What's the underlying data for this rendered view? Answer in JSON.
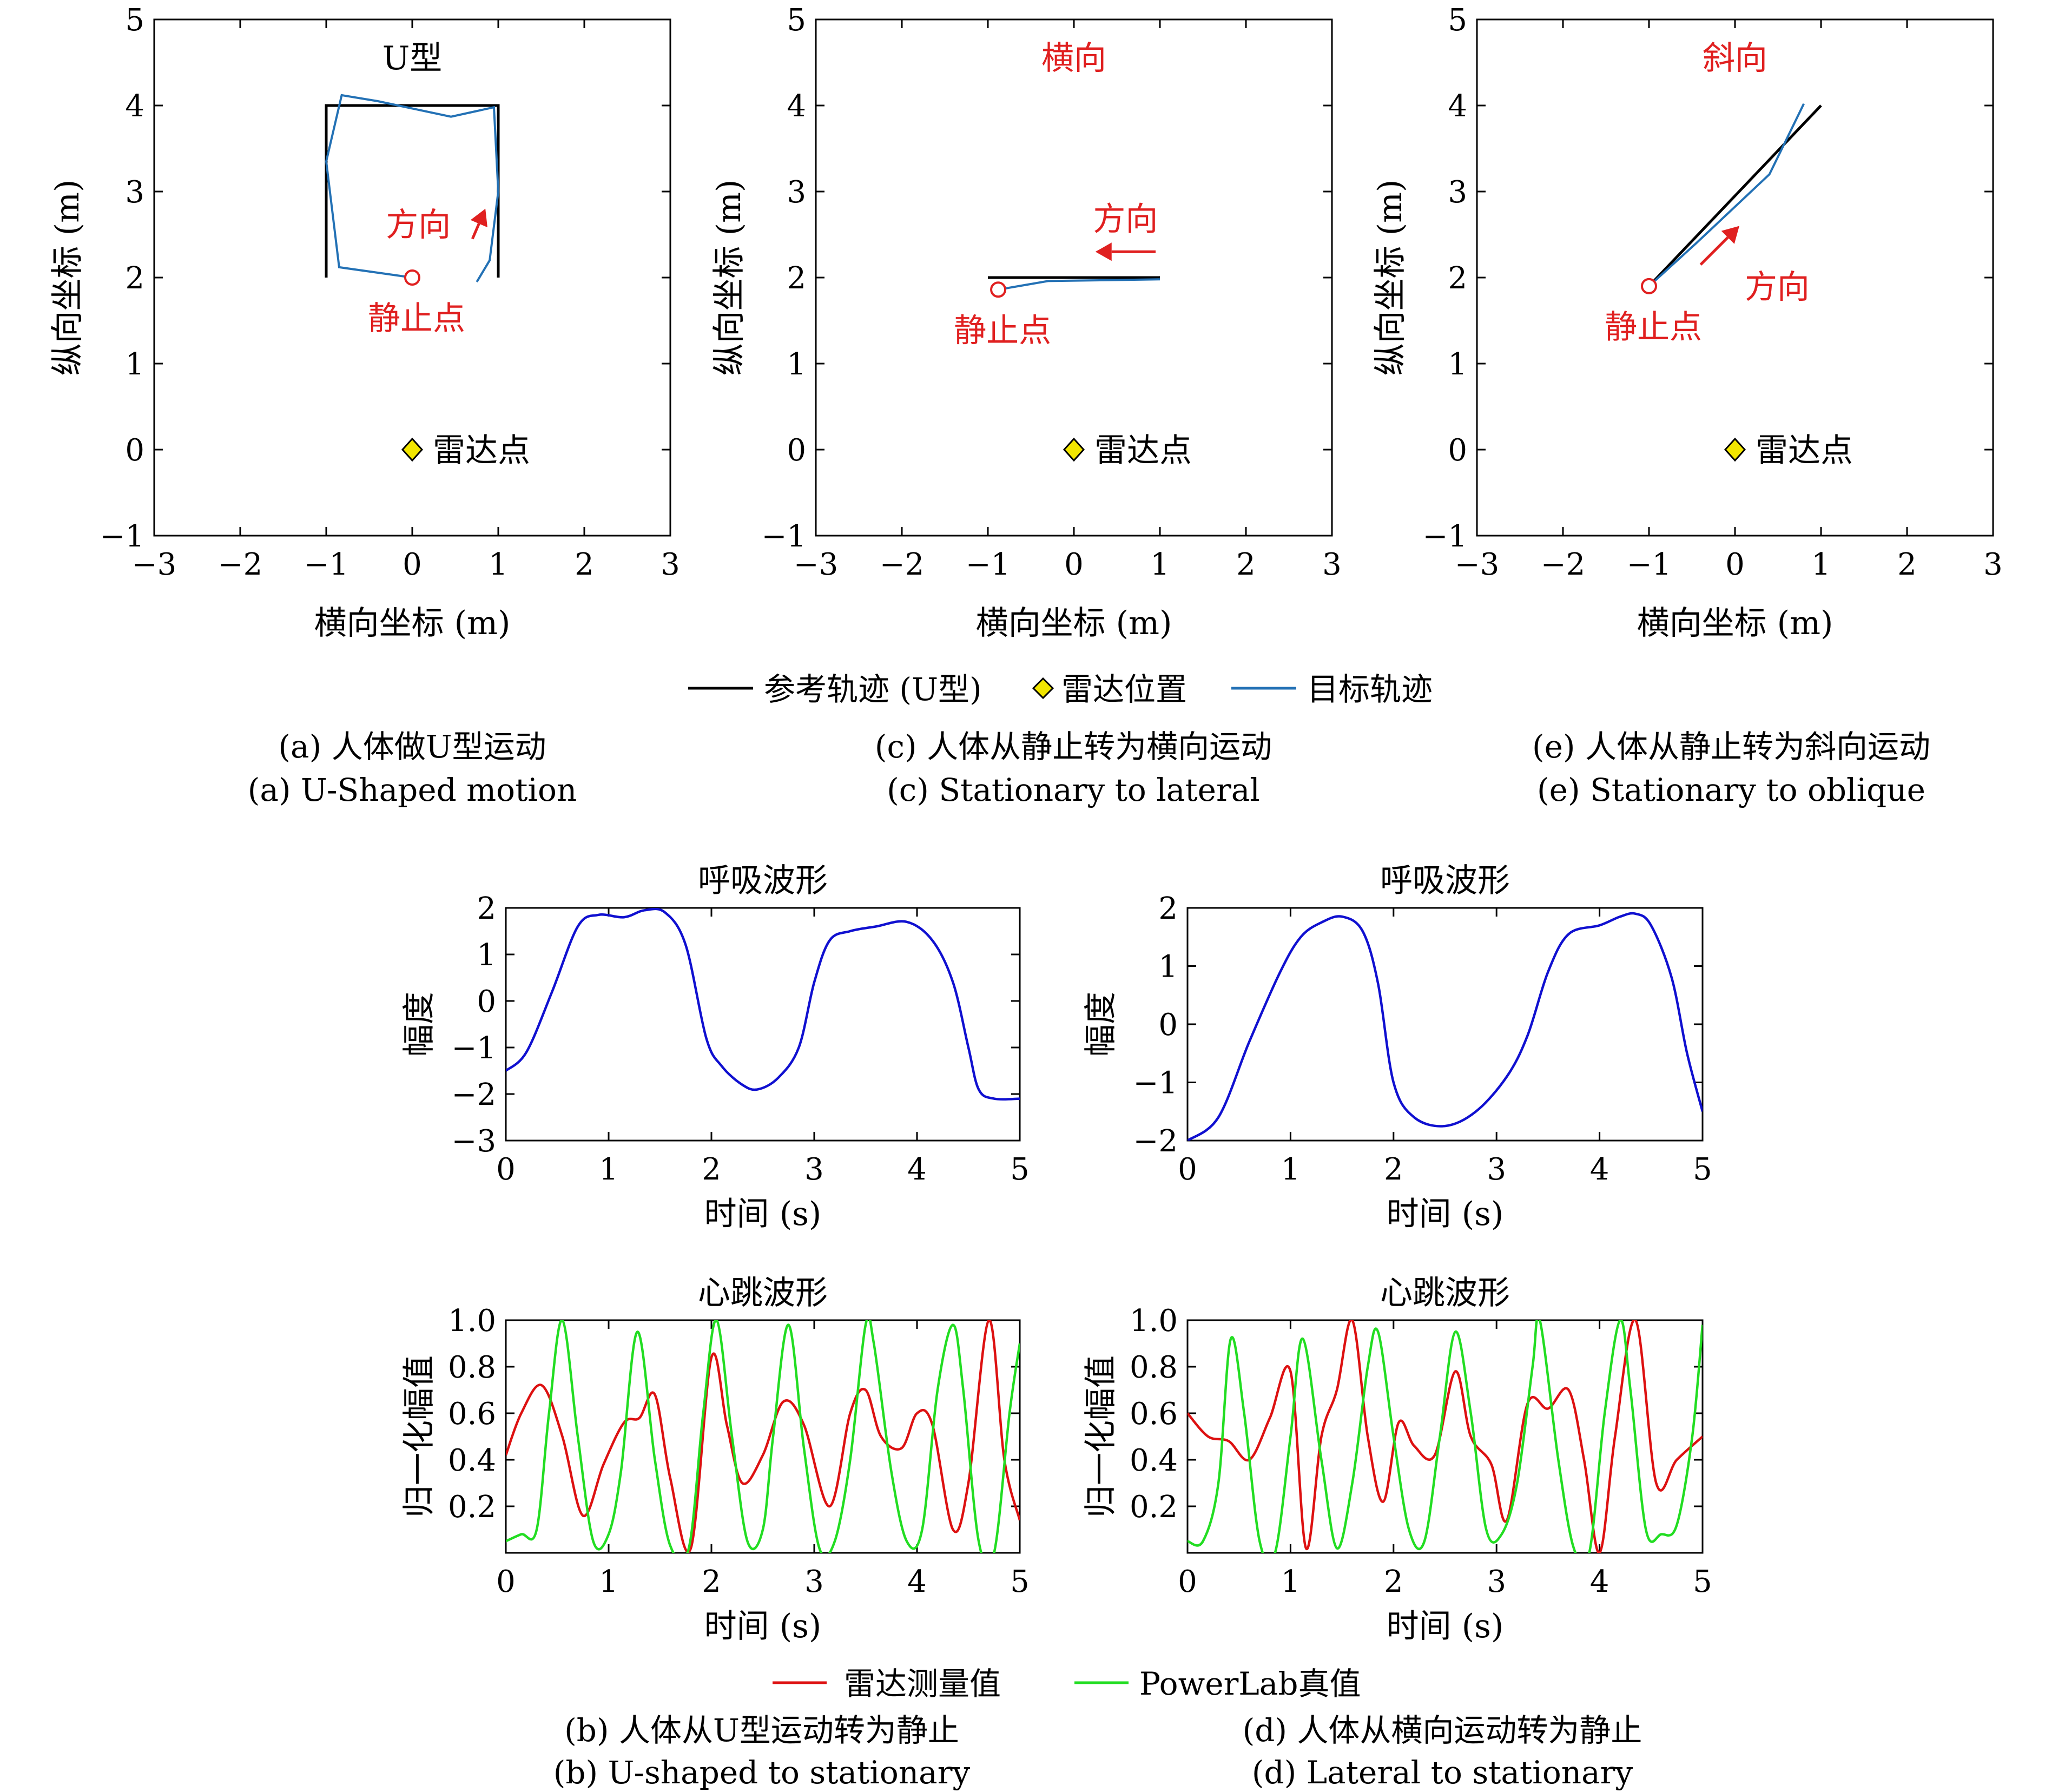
{
  "colors": {
    "reference": "#000000",
    "target": "#2371b5",
    "annotation": "#e02020",
    "radar_marker": "#f2e600",
    "breath": "#1010d0",
    "heart_radar": "#dd1111",
    "heart_powerlab": "#22dd22"
  },
  "trajectory_legend": {
    "reference": "参考轨迹 (U型)",
    "radar": "雷达位置",
    "target": "目标轨迹"
  },
  "heart_legend": {
    "radar": "雷达测量值",
    "powerlab": "PowerLab真值"
  },
  "captions": {
    "a_cn": "(a) 人体做U型运动",
    "a_en": "(a) U-Shaped motion",
    "c_cn": "(c) 人体从静止转为横向运动",
    "c_en": "(c) Stationary to lateral",
    "e_cn": "(e) 人体从静止转为斜向运动",
    "e_en": "(e) Stationary to oblique",
    "b_cn": "(b) 人体从U型运动转为静止",
    "b_en": "(b) U-shaped to stationary",
    "d_cn": "(d) 人体从横向运动转为静止",
    "d_en": "(d) Lateral to stationary"
  },
  "chart_data": [
    {
      "id": "a",
      "type": "line",
      "title": "U型",
      "title_color": "black",
      "xlabel": "横向坐标 (m)",
      "ylabel": "纵向坐标 (m)",
      "xlim": [
        -3,
        3
      ],
      "ylim": [
        -1,
        5
      ],
      "xticks": [
        "−3",
        "−2",
        "−1",
        "0",
        "1",
        "2",
        "3"
      ],
      "yticks": [
        "−1",
        "0",
        "1",
        "2",
        "3",
        "4",
        "5"
      ],
      "reference": [
        [
          -1,
          2
        ],
        [
          -1,
          4
        ],
        [
          1,
          4
        ],
        [
          1,
          2
        ]
      ],
      "target": [
        [
          0,
          2
        ],
        [
          -0.85,
          2.12
        ],
        [
          -1,
          3.35
        ],
        [
          -0.82,
          4.12
        ],
        [
          -0.4,
          4.05
        ],
        [
          0.45,
          3.87
        ],
        [
          0.95,
          3.98
        ],
        [
          1.0,
          3.0
        ],
        [
          0.9,
          2.2
        ],
        [
          0.75,
          1.95
        ]
      ],
      "rest_point": [
        0,
        2
      ],
      "rest_label": "静止点",
      "radar_point": [
        0,
        0
      ],
      "radar_label": "雷达点",
      "arrow": [
        [
          0.7,
          2.45
        ],
        [
          0.85,
          2.8
        ]
      ],
      "arrow_label": "方向"
    },
    {
      "id": "c",
      "type": "line",
      "title": "横向",
      "title_color": "red",
      "xlabel": "横向坐标 (m)",
      "ylabel": "纵向坐标 (m)",
      "xlim": [
        -3,
        3
      ],
      "ylim": [
        -1,
        5
      ],
      "xticks": [
        "−3",
        "−2",
        "−1",
        "0",
        "1",
        "2",
        "3"
      ],
      "yticks": [
        "−1",
        "0",
        "1",
        "2",
        "3",
        "4",
        "5"
      ],
      "reference": [
        [
          -1,
          2
        ],
        [
          1,
          2
        ]
      ],
      "target": [
        [
          -0.88,
          1.86
        ],
        [
          -0.3,
          1.96
        ],
        [
          0.4,
          1.97
        ],
        [
          1.0,
          1.98
        ]
      ],
      "rest_point": [
        -0.88,
        1.86
      ],
      "rest_label": "静止点",
      "radar_point": [
        0,
        0
      ],
      "radar_label": "雷达点",
      "arrow": [
        [
          0.95,
          2.3
        ],
        [
          0.25,
          2.3
        ]
      ],
      "arrow_label": "方向"
    },
    {
      "id": "e",
      "type": "line",
      "title": "斜向",
      "title_color": "red",
      "xlabel": "横向坐标 (m)",
      "ylabel": "纵向坐标 (m)",
      "xlim": [
        -3,
        3
      ],
      "ylim": [
        -1,
        5
      ],
      "xticks": [
        "−3",
        "−2",
        "−1",
        "0",
        "1",
        "2",
        "3"
      ],
      "yticks": [
        "−1",
        "0",
        "1",
        "2",
        "3",
        "4",
        "5"
      ],
      "reference": [
        [
          -1,
          1.9
        ],
        [
          1,
          4
        ]
      ],
      "target": [
        [
          -1,
          1.9
        ],
        [
          -0.45,
          2.4
        ],
        [
          0.4,
          3.2
        ],
        [
          0.8,
          4.02
        ]
      ],
      "rest_point": [
        -1,
        1.9
      ],
      "rest_label": "静止点",
      "radar_point": [
        0,
        0
      ],
      "radar_label": "雷达点",
      "arrow": [
        [
          -0.4,
          2.15
        ],
        [
          0.05,
          2.6
        ]
      ],
      "arrow_label": "方向"
    },
    {
      "id": "b_breath",
      "type": "line",
      "title": "呼吸波形",
      "xlabel": "时间 (s)",
      "ylabel": "幅度",
      "xlim": [
        0,
        5
      ],
      "ylim": [
        -3,
        2
      ],
      "xticks": [
        "0",
        "1",
        "2",
        "3",
        "4",
        "5"
      ],
      "yticks": [
        "−3",
        "−2",
        "−1",
        "0",
        "1",
        "2"
      ],
      "series": [
        {
          "x": [
            0,
            0.2,
            0.45,
            0.7,
            0.9,
            1.15,
            1.35,
            1.55,
            1.75,
            1.95,
            2.1,
            2.3,
            2.45,
            2.65,
            2.85,
            3.0,
            3.15,
            3.35,
            3.6,
            3.9,
            4.15,
            4.35,
            4.5,
            4.6,
            4.75,
            5
          ],
          "y": [
            -1.5,
            -1.1,
            0.2,
            1.6,
            1.85,
            1.8,
            1.95,
            1.9,
            1.2,
            -0.8,
            -1.4,
            -1.8,
            -1.9,
            -1.65,
            -1.0,
            0.4,
            1.3,
            1.5,
            1.6,
            1.7,
            1.3,
            0.4,
            -1.0,
            -1.9,
            -2.1,
            -2.1
          ]
        }
      ]
    },
    {
      "id": "d_breath",
      "type": "line",
      "title": "呼吸波形",
      "xlabel": "时间 (s)",
      "ylabel": "幅度",
      "xlim": [
        0,
        5
      ],
      "ylim": [
        -2,
        2
      ],
      "xticks": [
        "0",
        "1",
        "2",
        "3",
        "4",
        "5"
      ],
      "yticks": [
        "−2",
        "−1",
        "0",
        "1",
        "2"
      ],
      "series": [
        {
          "x": [
            0,
            0.3,
            0.6,
            0.9,
            1.1,
            1.3,
            1.5,
            1.7,
            1.85,
            2.0,
            2.2,
            2.5,
            2.8,
            3.1,
            3.3,
            3.5,
            3.7,
            4.0,
            4.2,
            4.35,
            4.5,
            4.7,
            4.85,
            5
          ],
          "y": [
            -2.0,
            -1.6,
            -0.3,
            0.9,
            1.5,
            1.75,
            1.85,
            1.6,
            0.7,
            -1.0,
            -1.6,
            -1.75,
            -1.5,
            -0.9,
            -0.2,
            0.9,
            1.55,
            1.7,
            1.85,
            1.9,
            1.7,
            0.8,
            -0.5,
            -1.5
          ]
        }
      ]
    },
    {
      "id": "b_heart",
      "type": "line",
      "title": "心跳波形",
      "xlabel": "时间 (s)",
      "ylabel": "归一化幅值",
      "xlim": [
        0,
        5
      ],
      "ylim": [
        0,
        1
      ],
      "xticks": [
        "0",
        "1",
        "2",
        "3",
        "4",
        "5"
      ],
      "yticks": [
        "0.2",
        "0.4",
        "0.6",
        "0.8",
        "1.0"
      ],
      "series": [
        {
          "name": "雷达测量值",
          "x": [
            0,
            0.15,
            0.35,
            0.55,
            0.75,
            0.95,
            1.15,
            1.3,
            1.45,
            1.6,
            1.8,
            2.0,
            2.15,
            2.3,
            2.5,
            2.7,
            2.9,
            3.15,
            3.35,
            3.5,
            3.65,
            3.85,
            4.0,
            4.15,
            4.35,
            4.5,
            4.7,
            4.85,
            5.0
          ],
          "y": [
            0.42,
            0.6,
            0.72,
            0.5,
            0.16,
            0.38,
            0.56,
            0.58,
            0.68,
            0.32,
            0.02,
            0.84,
            0.55,
            0.3,
            0.42,
            0.65,
            0.55,
            0.2,
            0.6,
            0.7,
            0.5,
            0.45,
            0.6,
            0.55,
            0.1,
            0.3,
            1.0,
            0.4,
            0.14
          ]
        },
        {
          "name": "PowerLab真值",
          "x": [
            0,
            0.15,
            0.3,
            0.42,
            0.55,
            0.7,
            0.85,
            1.0,
            1.12,
            1.28,
            1.45,
            1.6,
            1.78,
            1.92,
            2.05,
            2.2,
            2.35,
            2.5,
            2.6,
            2.75,
            2.9,
            3.05,
            3.2,
            3.35,
            3.5,
            3.58,
            3.75,
            3.9,
            4.05,
            4.2,
            4.35,
            4.45,
            4.6,
            4.75,
            4.9,
            5.0
          ],
          "y": [
            0.05,
            0.08,
            0.1,
            0.6,
            1.0,
            0.5,
            0.05,
            0.08,
            0.35,
            0.95,
            0.4,
            0.03,
            0.02,
            0.6,
            1.0,
            0.5,
            0.05,
            0.1,
            0.5,
            0.98,
            0.45,
            0.02,
            0.05,
            0.4,
            0.98,
            0.9,
            0.35,
            0.05,
            0.1,
            0.7,
            0.98,
            0.7,
            0.05,
            0.0,
            0.6,
            0.9
          ]
        }
      ]
    },
    {
      "id": "d_heart",
      "type": "line",
      "title": "心跳波形",
      "xlabel": "时间 (s)",
      "ylabel": "归一化幅值",
      "xlim": [
        0,
        5
      ],
      "ylim": [
        0,
        1
      ],
      "xticks": [
        "0",
        "1",
        "2",
        "3",
        "4",
        "5"
      ],
      "yticks": [
        "0.2",
        "0.4",
        "0.6",
        "0.8",
        "1.0"
      ],
      "series": [
        {
          "name": "雷达测量值",
          "x": [
            0,
            0.2,
            0.4,
            0.6,
            0.8,
            1.0,
            1.15,
            1.3,
            1.45,
            1.6,
            1.75,
            1.9,
            2.05,
            2.2,
            2.4,
            2.6,
            2.75,
            2.95,
            3.1,
            3.3,
            3.5,
            3.7,
            3.85,
            4.0,
            4.15,
            4.35,
            4.55,
            4.75,
            5.0
          ],
          "y": [
            0.6,
            0.5,
            0.48,
            0.4,
            0.58,
            0.78,
            0.02,
            0.5,
            0.7,
            1.0,
            0.5,
            0.22,
            0.56,
            0.46,
            0.42,
            0.78,
            0.5,
            0.38,
            0.14,
            0.64,
            0.62,
            0.7,
            0.4,
            0.0,
            0.5,
            1.0,
            0.3,
            0.4,
            0.5
          ]
        },
        {
          "name": "PowerLab真值",
          "x": [
            0,
            0.15,
            0.3,
            0.42,
            0.55,
            0.7,
            0.85,
            1.0,
            1.12,
            1.3,
            1.45,
            1.6,
            1.75,
            1.85,
            2.0,
            2.15,
            2.3,
            2.45,
            2.6,
            2.75,
            2.9,
            3.05,
            3.2,
            3.35,
            3.42,
            3.6,
            3.75,
            3.9,
            4.05,
            4.2,
            4.3,
            4.45,
            4.6,
            4.75,
            4.9,
            5.0
          ],
          "y": [
            0.05,
            0.05,
            0.3,
            0.92,
            0.6,
            0.05,
            0.0,
            0.5,
            0.92,
            0.4,
            0.02,
            0.3,
            0.8,
            0.95,
            0.5,
            0.1,
            0.05,
            0.5,
            0.95,
            0.6,
            0.1,
            0.08,
            0.3,
            0.8,
            1.0,
            0.4,
            0.02,
            0.0,
            0.6,
            1.0,
            0.7,
            0.1,
            0.08,
            0.12,
            0.5,
            0.98
          ]
        }
      ]
    }
  ]
}
